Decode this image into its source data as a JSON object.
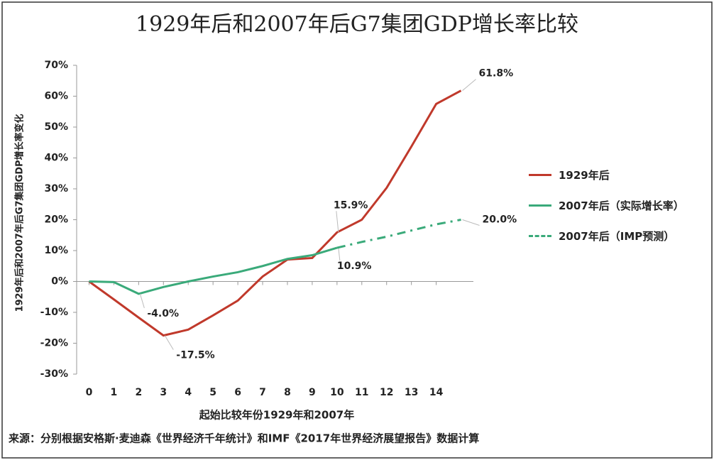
{
  "chart_data": {
    "type": "line",
    "title": "1929年后和2007年后G7集团GDP增长率比较",
    "x_label": "起始比较年份1929年和2007年",
    "y_label": "1929年后和2007年后G7集团GDP增长率变化",
    "source": "来源：分别根据安格斯·麦迪森《世界经济千年统计》和IMF《2017年世界经济展望报告》数据计算",
    "xlim": [
      -0.5,
      15.5
    ],
    "xticks": [
      0,
      1,
      2,
      3,
      4,
      5,
      6,
      7,
      8,
      9,
      10,
      11,
      12,
      13,
      14
    ],
    "ylim": [
      -30,
      70
    ],
    "yticks": [
      {
        "value": -30,
        "label": "-30%"
      },
      {
        "value": -20,
        "label": "-20%"
      },
      {
        "value": -10,
        "label": "-10%"
      },
      {
        "value": 0,
        "label": "0%"
      },
      {
        "value": 10,
        "label": "10%"
      },
      {
        "value": 20,
        "label": "20%"
      },
      {
        "value": 30,
        "label": "30%"
      },
      {
        "value": 40,
        "label": "40%"
      },
      {
        "value": 50,
        "label": "50%"
      },
      {
        "value": 60,
        "label": "60%"
      },
      {
        "value": 70,
        "label": "70%"
      }
    ],
    "series": [
      {
        "name": "1929年后",
        "color": "#c0392b",
        "line_style": "solid",
        "x": [
          0,
          1,
          2,
          3,
          4,
          5,
          6,
          7,
          8,
          9,
          10,
          11,
          12,
          13,
          14,
          15
        ],
        "values": [
          0,
          -5.8,
          -11.7,
          -17.5,
          -15.6,
          -11,
          -6.2,
          1.6,
          7.1,
          7.6,
          15.9,
          20,
          30.3,
          43.7,
          57.5,
          61.8
        ],
        "value_labels": [
          null,
          null,
          null,
          "-17.5%",
          null,
          null,
          null,
          null,
          null,
          null,
          "15.9%",
          null,
          null,
          null,
          null,
          "61.8%"
        ]
      },
      {
        "name": "2007年后（实际增长率）",
        "color": "#3aaa7a",
        "line_style": "solid",
        "x": [
          0,
          1,
          2,
          3,
          4,
          5,
          6,
          7,
          8,
          9,
          10
        ],
        "values": [
          0,
          -0.2,
          -4.0,
          -1.8,
          0,
          1.6,
          3,
          5,
          7.3,
          8.5,
          10.9
        ],
        "value_labels": [
          null,
          null,
          "-4.0%",
          null,
          null,
          null,
          null,
          null,
          null,
          null,
          "10.9%"
        ]
      },
      {
        "name": "2007年后（IMP预测）",
        "color": "#3aaa7a",
        "line_style": "dash-dot",
        "x": [
          10,
          11,
          12,
          13,
          14,
          15
        ],
        "values": [
          10.9,
          12.8,
          14.5,
          16.5,
          18.5,
          20.0
        ],
        "value_labels": [
          null,
          null,
          null,
          null,
          null,
          "20.0%"
        ]
      }
    ]
  }
}
